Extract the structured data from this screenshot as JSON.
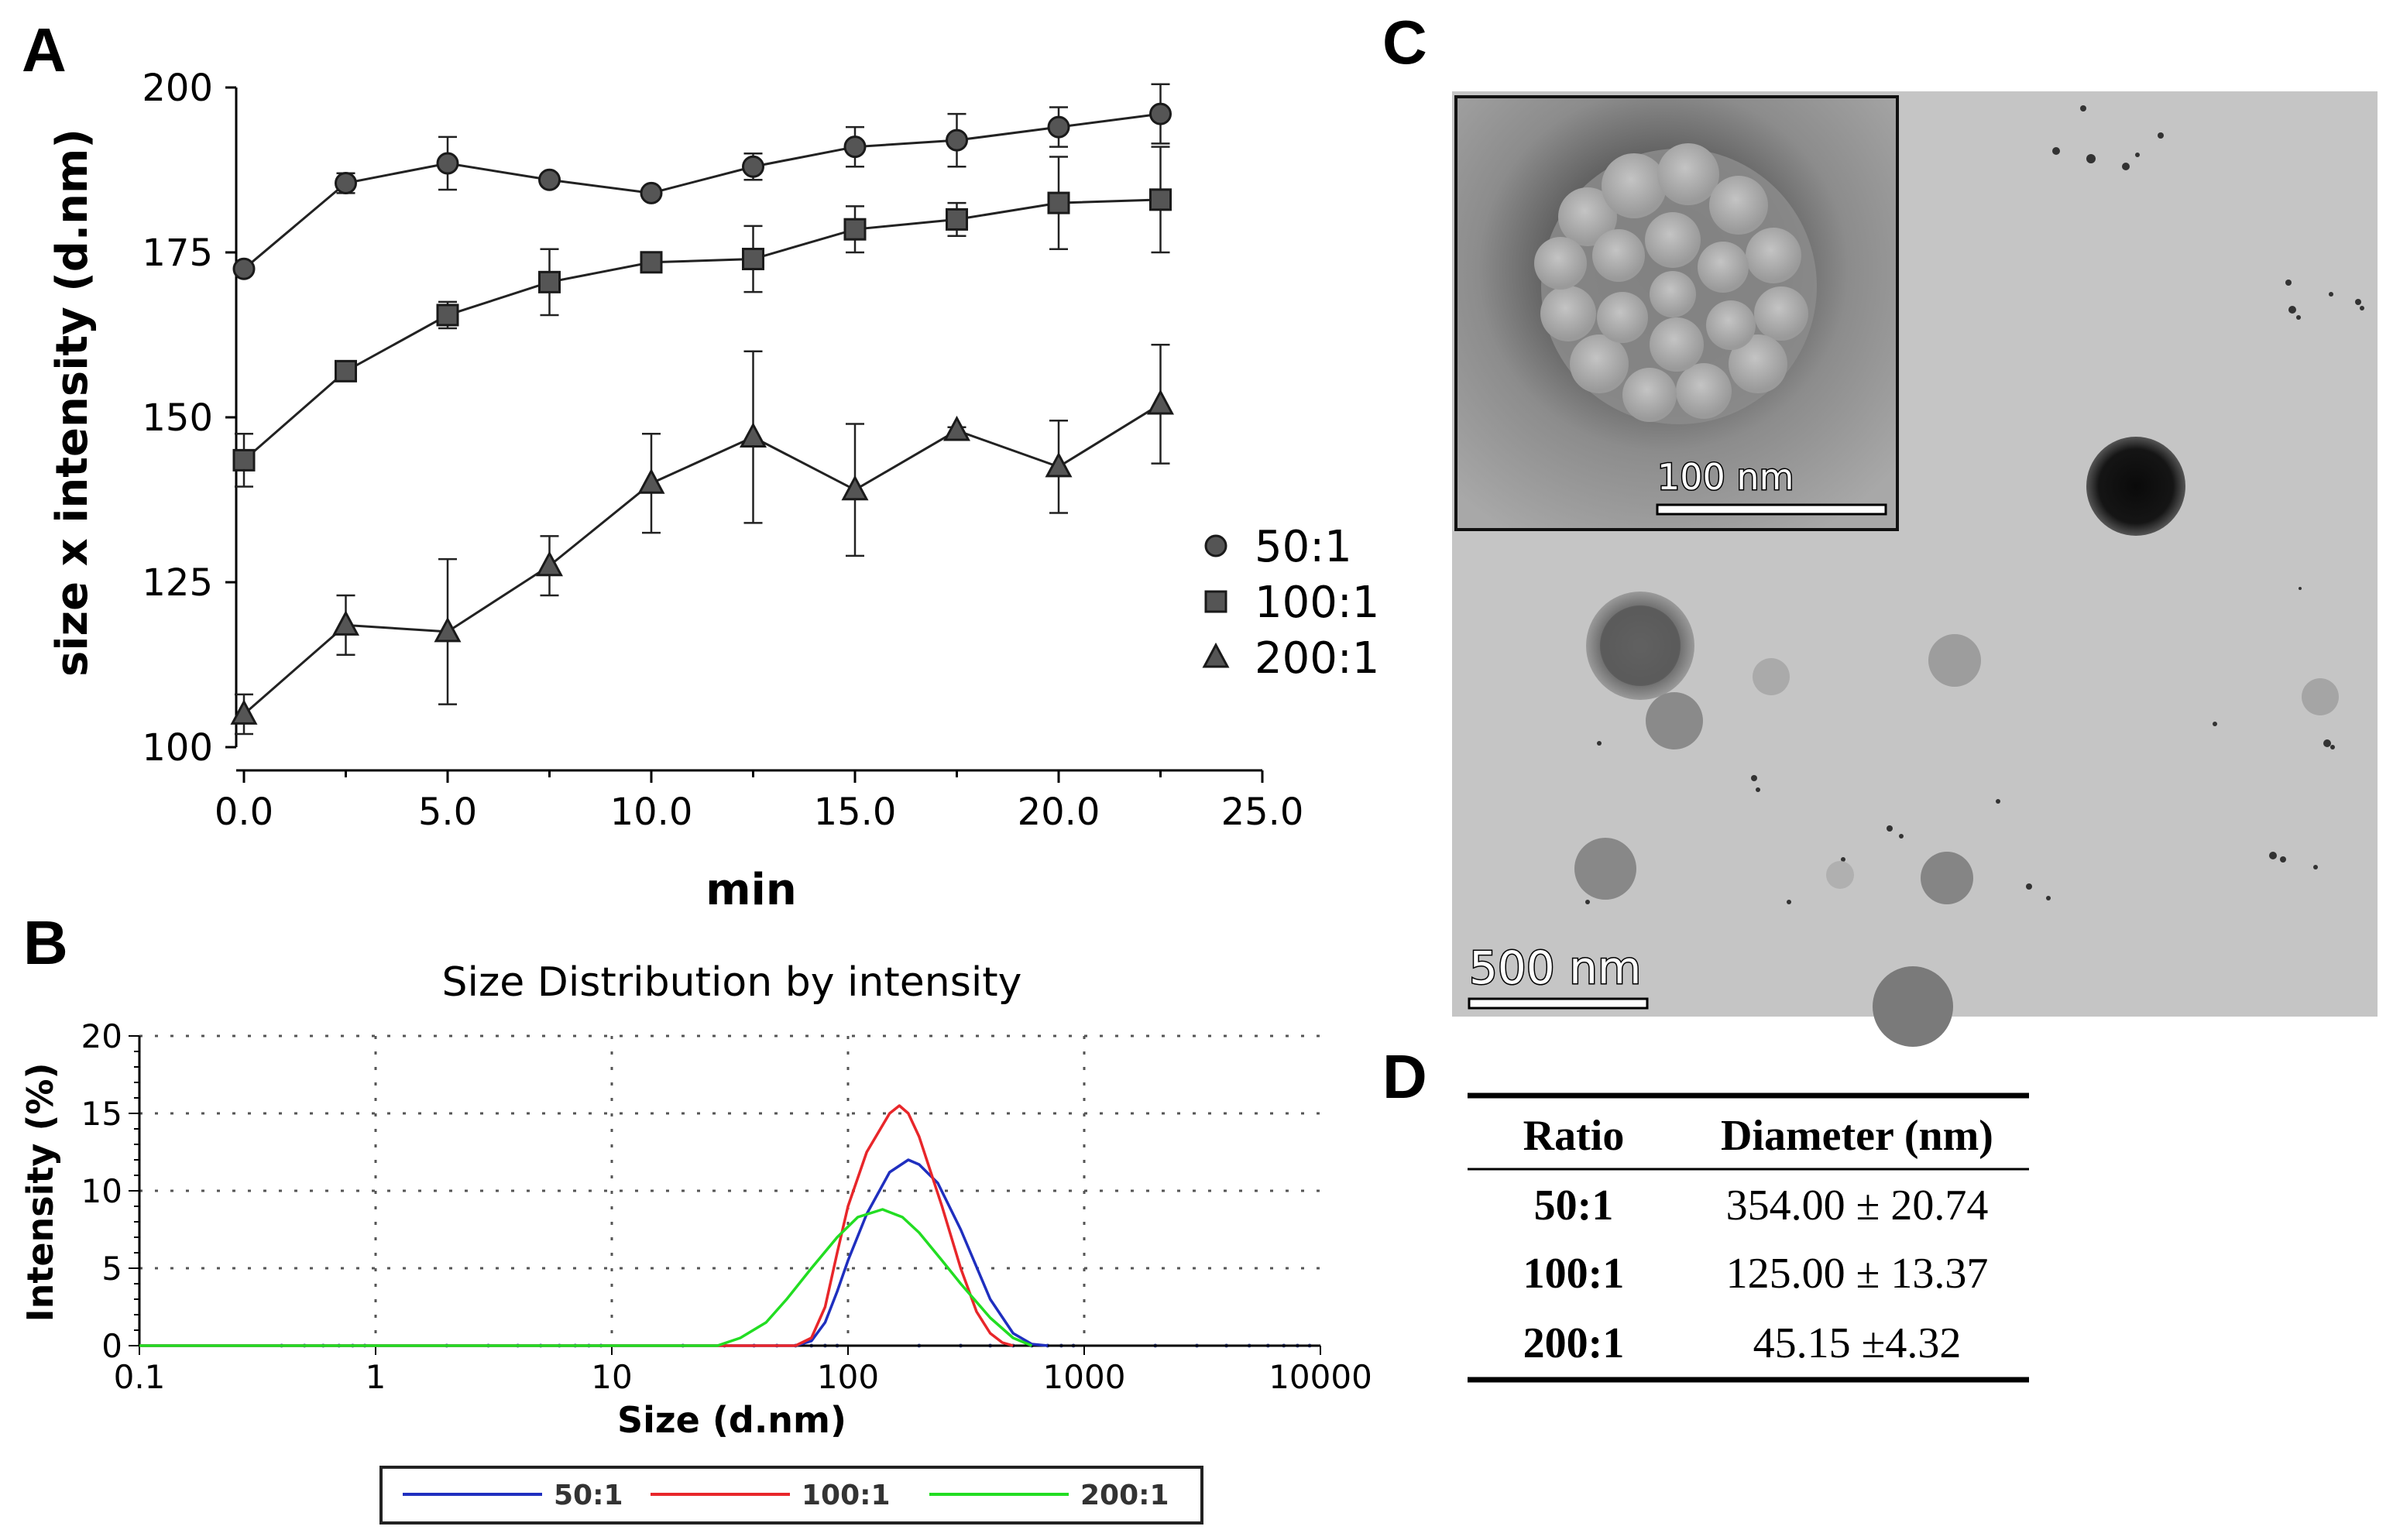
{
  "panels": {
    "a": "A",
    "b": "B",
    "c": "C",
    "d": "D"
  },
  "chart_data": [
    {
      "id": "A",
      "type": "line",
      "xlabel": "min",
      "ylabel": "size x intensity (d.nm)",
      "xlim": [
        0,
        25
      ],
      "ylim": [
        100,
        200
      ],
      "xticks": [
        "0.0",
        "5.0",
        "10.0",
        "15.0",
        "20.0",
        "25.0"
      ],
      "yticks": [
        "100",
        "125",
        "150",
        "175",
        "200"
      ],
      "x": [
        0,
        2.5,
        5,
        7.5,
        10,
        12.5,
        15,
        17.5,
        20,
        22.5
      ],
      "series": [
        {
          "name": "50:1",
          "marker": "circle",
          "values": [
            172.5,
            185.5,
            188.5,
            186,
            184,
            188,
            191,
            192,
            194,
            196
          ],
          "errors": [
            0.5,
            1.5,
            4,
            0.5,
            0.5,
            2,
            3,
            4,
            3,
            4.5
          ]
        },
        {
          "name": "100:1",
          "marker": "square",
          "values": [
            143.5,
            157,
            165.5,
            170.5,
            173.5,
            174,
            178.5,
            180,
            182.5,
            183
          ],
          "errors": [
            4,
            0.5,
            2,
            5,
            0.5,
            5,
            3.5,
            2.5,
            7,
            8
          ]
        },
        {
          "name": "200:1",
          "marker": "triangle",
          "values": [
            105,
            118.5,
            117.5,
            127.5,
            140,
            147,
            139,
            148,
            142.5,
            152
          ],
          "errors": [
            3,
            4.5,
            11,
            4.5,
            7.5,
            13,
            10,
            0.5,
            7,
            9
          ]
        }
      ]
    },
    {
      "id": "B",
      "type": "line",
      "title": "Size  Distribution by  intensity",
      "xlabel": "Size (d.nm)",
      "ylabel": "Intensity (%)",
      "xscale": "log",
      "xlim": [
        0.1,
        10000
      ],
      "ylim": [
        0,
        20
      ],
      "xticks": [
        "0.1",
        "1",
        "10",
        "100",
        "1000",
        "10000"
      ],
      "yticks": [
        "0",
        "5",
        "10",
        "15",
        "20"
      ],
      "grid": true,
      "legend_position": "bottom",
      "series": [
        {
          "name": "50:1",
          "color": "#1f2fbf",
          "x": [
            60,
            70,
            80,
            90,
            100,
            120,
            150,
            180,
            200,
            240,
            300,
            400,
            500,
            600,
            700
          ],
          "values": [
            0,
            0.3,
            1.5,
            3.5,
            5.5,
            8.5,
            11.2,
            12,
            11.7,
            10.5,
            7.5,
            3,
            0.8,
            0.1,
            0
          ]
        },
        {
          "name": "100:1",
          "color": "#e8262a",
          "x": [
            60,
            70,
            80,
            90,
            100,
            120,
            150,
            165,
            180,
            200,
            250,
            300,
            350,
            400,
            450,
            500
          ],
          "values": [
            0,
            0.5,
            2.5,
            6,
            9,
            12.5,
            15,
            15.5,
            15,
            13.5,
            9,
            5,
            2.2,
            0.8,
            0.2,
            0
          ]
        },
        {
          "name": "200:1",
          "color": "#22dd22",
          "x": [
            28,
            35,
            45,
            55,
            70,
            90,
            110,
            140,
            170,
            200,
            250,
            300,
            400,
            500,
            600
          ],
          "values": [
            0,
            0.5,
            1.5,
            3,
            5,
            7,
            8.3,
            8.8,
            8.3,
            7.3,
            5.5,
            4,
            1.8,
            0.5,
            0
          ]
        }
      ]
    }
  ],
  "micrograph": {
    "inset_scale": "100 nm",
    "main_scale": "500 nm"
  },
  "table": {
    "headers": [
      "Ratio",
      "Diameter (nm)"
    ],
    "rows": [
      {
        "ratio": "50:1",
        "diameter": "354.00 ± 20.74"
      },
      {
        "ratio": "100:1",
        "diameter": "125.00 ± 13.37"
      },
      {
        "ratio": "200:1",
        "diameter": "45.15 ±4.32"
      }
    ]
  }
}
